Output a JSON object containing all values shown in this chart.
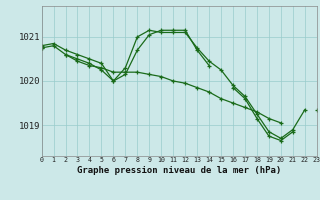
{
  "title": "Graphe pression niveau de la mer (hPa)",
  "background_color": "#cce8e8",
  "grid_color": "#99cccc",
  "line_color": "#1a6b1a",
  "xlim": [
    0,
    23
  ],
  "ylim": [
    1018.3,
    1021.7
  ],
  "yticks": [
    1019,
    1020,
    1021
  ],
  "series1": [
    1020.8,
    1020.85,
    1020.7,
    1020.6,
    1020.5,
    1020.4,
    1020.0,
    1020.3,
    1021.0,
    1021.15,
    1021.1,
    1021.1,
    1021.1,
    1020.75,
    1020.45,
    1020.25,
    1019.9,
    1019.65,
    1019.25,
    1018.85,
    1018.7,
    1018.9,
    1019.35,
    null
  ],
  "series2": [
    1020.75,
    1020.8,
    1020.6,
    1020.45,
    1020.35,
    1020.3,
    1020.2,
    1020.2,
    1020.2,
    1020.15,
    1020.1,
    1020.0,
    1019.95,
    1019.85,
    1019.75,
    1019.6,
    1019.5,
    1019.4,
    1019.3,
    1019.15,
    1019.05,
    null,
    null,
    null
  ],
  "series3": [
    1020.75,
    null,
    1020.6,
    1020.5,
    1020.4,
    1020.25,
    1020.0,
    1020.15,
    1020.7,
    1021.05,
    1021.15,
    1021.15,
    1021.15,
    1020.7,
    1020.35,
    null,
    1019.85,
    1019.6,
    1019.15,
    1018.75,
    1018.65,
    1018.85,
    null,
    1019.35
  ],
  "ytick_fontsize": 6.5,
  "xtick_fontsize": 4.8,
  "title_fontsize": 6.5
}
